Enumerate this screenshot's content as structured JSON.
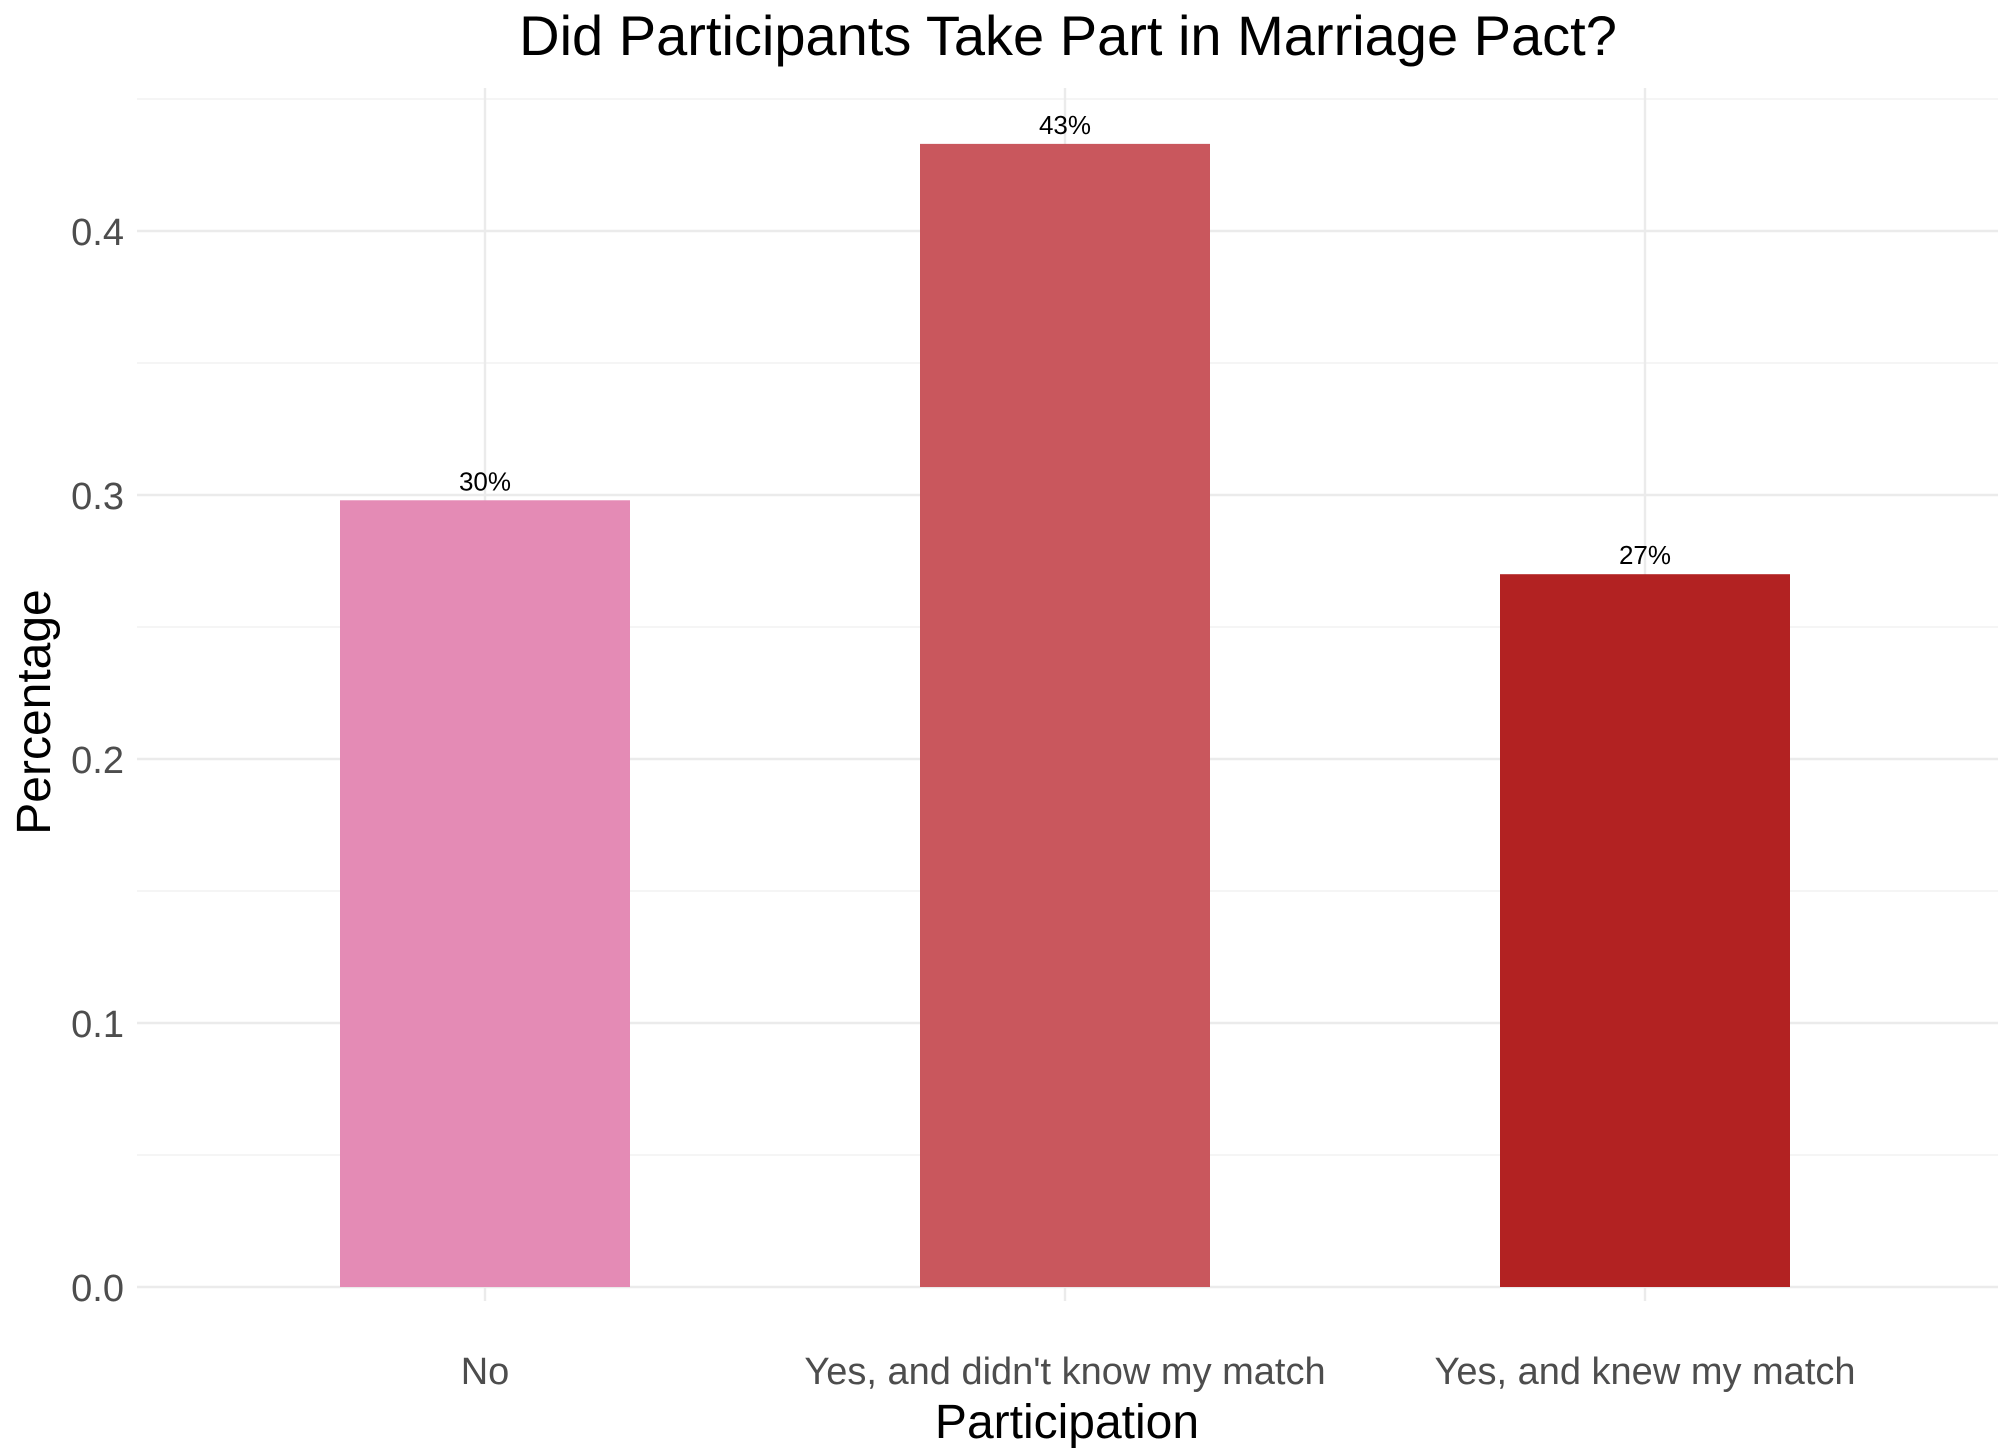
{
  "chart_data": {
    "type": "bar",
    "title": "Did Participants Take Part in Marriage Pact?",
    "xlabel": "Participation",
    "ylabel": "Percentage",
    "categories": [
      "No",
      "Yes, and didn't know my match",
      "Yes, and knew my match"
    ],
    "values": [
      0.298,
      0.433,
      0.27
    ],
    "data_labels": [
      "30%",
      "43%",
      "27%"
    ],
    "bar_colors": [
      "#E48BB5",
      "#C9575D",
      "#B22222"
    ],
    "ylim": [
      0,
      0.45
    ],
    "yticks": [
      0.0,
      0.1,
      0.2,
      0.3,
      0.4
    ],
    "ytick_labels": [
      "0.0",
      "0.1",
      "0.2",
      "0.3",
      "0.4"
    ],
    "grid": true,
    "legend": "none"
  }
}
